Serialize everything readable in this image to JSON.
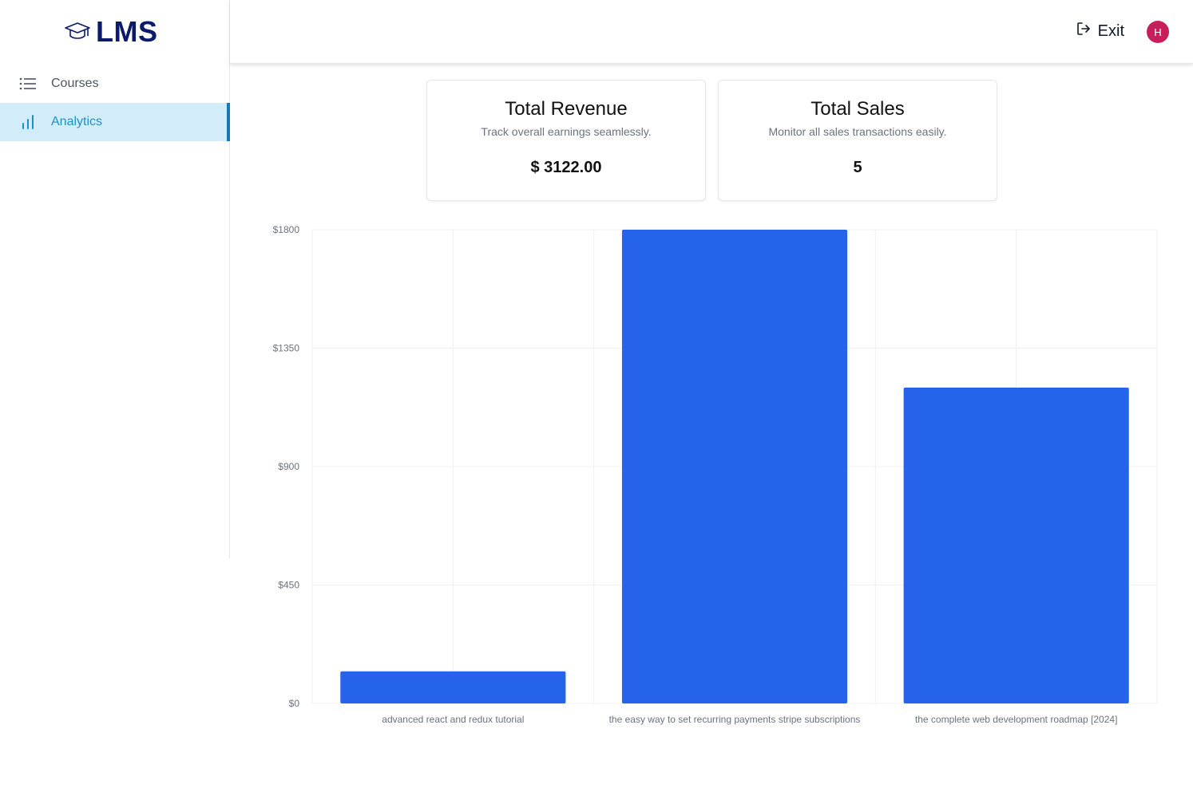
{
  "app": {
    "logo_text": "LMS"
  },
  "sidebar": {
    "items": [
      {
        "label": "Courses",
        "icon": "list-icon",
        "active": false
      },
      {
        "label": "Analytics",
        "icon": "bar-chart-icon",
        "active": true
      }
    ]
  },
  "header": {
    "exit_label": "Exit",
    "avatar_initial": "H"
  },
  "stats": {
    "revenue": {
      "title": "Total Revenue",
      "description": "Track overall earnings seamlessly.",
      "value": "$ 3122.00"
    },
    "sales": {
      "title": "Total Sales",
      "description": "Monitor all sales transactions easily.",
      "value": "5"
    }
  },
  "colors": {
    "bar": "#2563eb",
    "active_nav_bg": "#d3ecfa",
    "active_nav_text": "#1e90c8",
    "logo": "#0c1a6b",
    "avatar": "#c81e5b"
  },
  "chart_data": {
    "type": "bar",
    "categories": [
      "advanced react and redux tutorial",
      "the easy way to set recurring payments stripe subscriptions",
      "the complete web development roadmap [2024]"
    ],
    "values": [
      122,
      1800,
      1200
    ],
    "yticks": [
      "$0",
      "$450",
      "$900",
      "$1350",
      "$1800"
    ],
    "ylim": [
      0,
      1800
    ],
    "grid": true,
    "title": "",
    "xlabel": "",
    "ylabel": ""
  }
}
